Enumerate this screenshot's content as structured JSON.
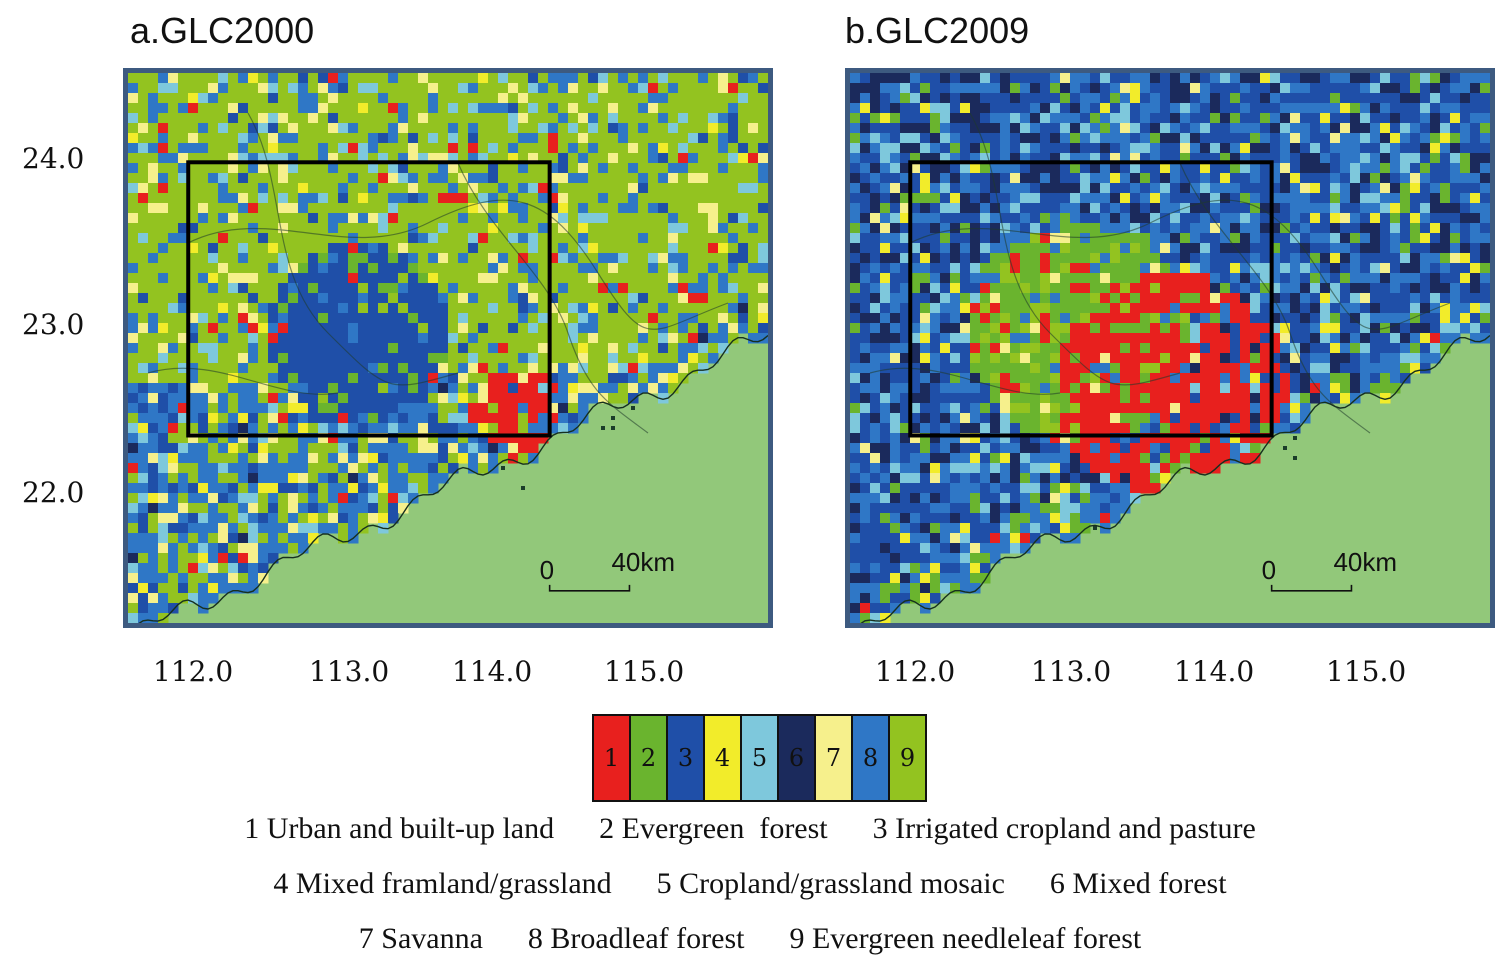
{
  "panels": [
    {
      "title": "a.GLC2000",
      "scalebar": {
        "zero": "0",
        "distance": "40km"
      }
    },
    {
      "title": "b.GLC2009",
      "scalebar": {
        "zero": "0",
        "distance": "40km"
      }
    }
  ],
  "axes": {
    "lat_ticks": [
      "24.0",
      "23.0",
      "22.0"
    ],
    "lon_ticks": [
      "112.0",
      "113.0",
      "114.0",
      "115.0"
    ]
  },
  "study_box": {
    "lon": [
      112.0,
      114.4
    ],
    "lat": [
      22.45,
      23.98
    ]
  },
  "legend": {
    "classes": [
      {
        "id": "1",
        "color": "#e8201e",
        "label": "Urban and built-up land"
      },
      {
        "id": "2",
        "color": "#6ab42e",
        "label": "Evergreen  forest"
      },
      {
        "id": "3",
        "color": "#1f4fa8",
        "label": "Irrigated cropland and pasture"
      },
      {
        "id": "4",
        "color": "#f2ec2a",
        "label": "Mixed framland/grassland"
      },
      {
        "id": "5",
        "color": "#7ec8dc",
        "label": "Cropland/grassland mosaic"
      },
      {
        "id": "6",
        "color": "#1b2a5c",
        "label": "Mixed forest"
      },
      {
        "id": "7",
        "color": "#f6f08c",
        "label": "Savanna"
      },
      {
        "id": "8",
        "color": "#2f77c6",
        "label": "Broadleaf forest"
      },
      {
        "id": "9",
        "color": "#93c320",
        "label": "Evergreen needleleaf forest"
      }
    ],
    "lines": [
      "1 Urban and built-up land      2 Evergreen  forest      3 Irrigated cropland and pasture",
      "4 Mixed framland/grassland      5 Cropland/grassland mosaic      6 Mixed forest",
      "7 Savanna      8 Broadleaf forest      9 Evergreen needleleaf forest"
    ]
  },
  "colors": {
    "water": "#92c87a",
    "frame": "#3d5a80",
    "box": "#000000"
  }
}
